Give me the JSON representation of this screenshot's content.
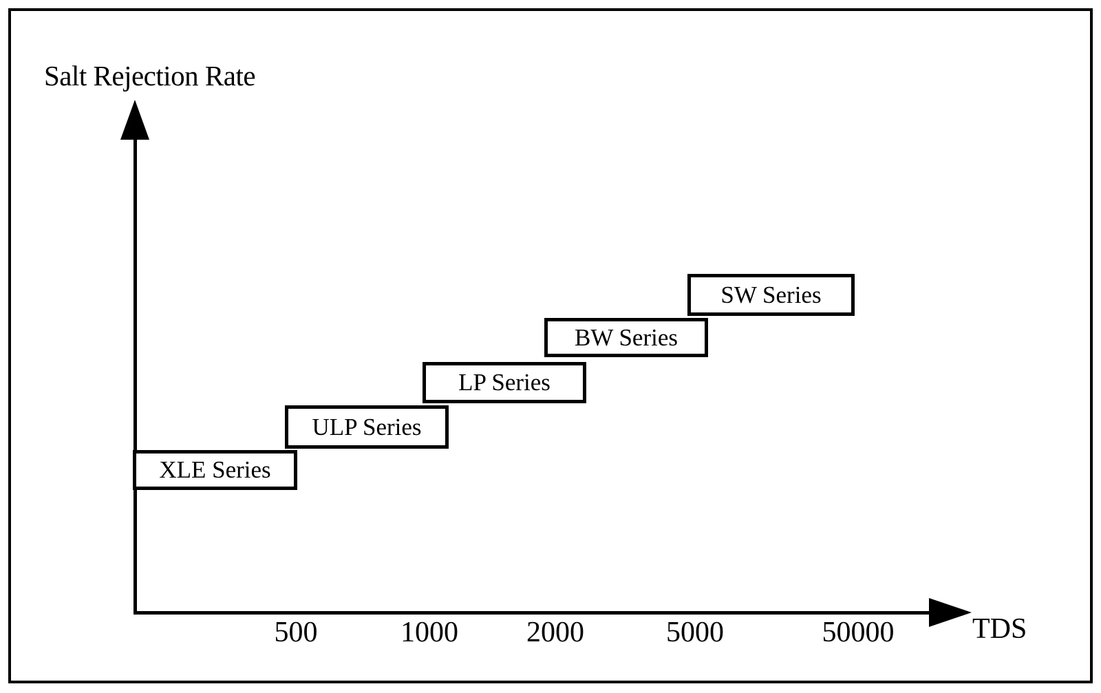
{
  "chart_data": {
    "type": "scatter",
    "subtype": "labeled-step-boxes",
    "title": "",
    "xlabel": "TDS",
    "ylabel": "Salt Rejection Rate",
    "x_tick_labels": [
      "500",
      "1000",
      "2000",
      "5000",
      "50000"
    ],
    "grid": false,
    "legend": false,
    "annotation": "Five outlined boxes form an ascending stair-step from lower-left to upper-right: membrane series for higher feed-water TDS ranges have higher salt rejection rates",
    "boxes": [
      {
        "label": "XLE Series",
        "tds_range": [
          0,
          500
        ],
        "step": 1
      },
      {
        "label": "ULP Series",
        "tds_range": [
          500,
          1000
        ],
        "step": 2
      },
      {
        "label": "LP Series",
        "tds_range": [
          1000,
          2000
        ],
        "step": 3
      },
      {
        "label": "BW Series",
        "tds_range": [
          2000,
          5000
        ],
        "step": 4
      },
      {
        "label": "SW Series",
        "tds_range": [
          5000,
          50000
        ],
        "step": 5
      }
    ],
    "colors": {
      "ink": "#000000",
      "background": "#ffffff"
    }
  }
}
